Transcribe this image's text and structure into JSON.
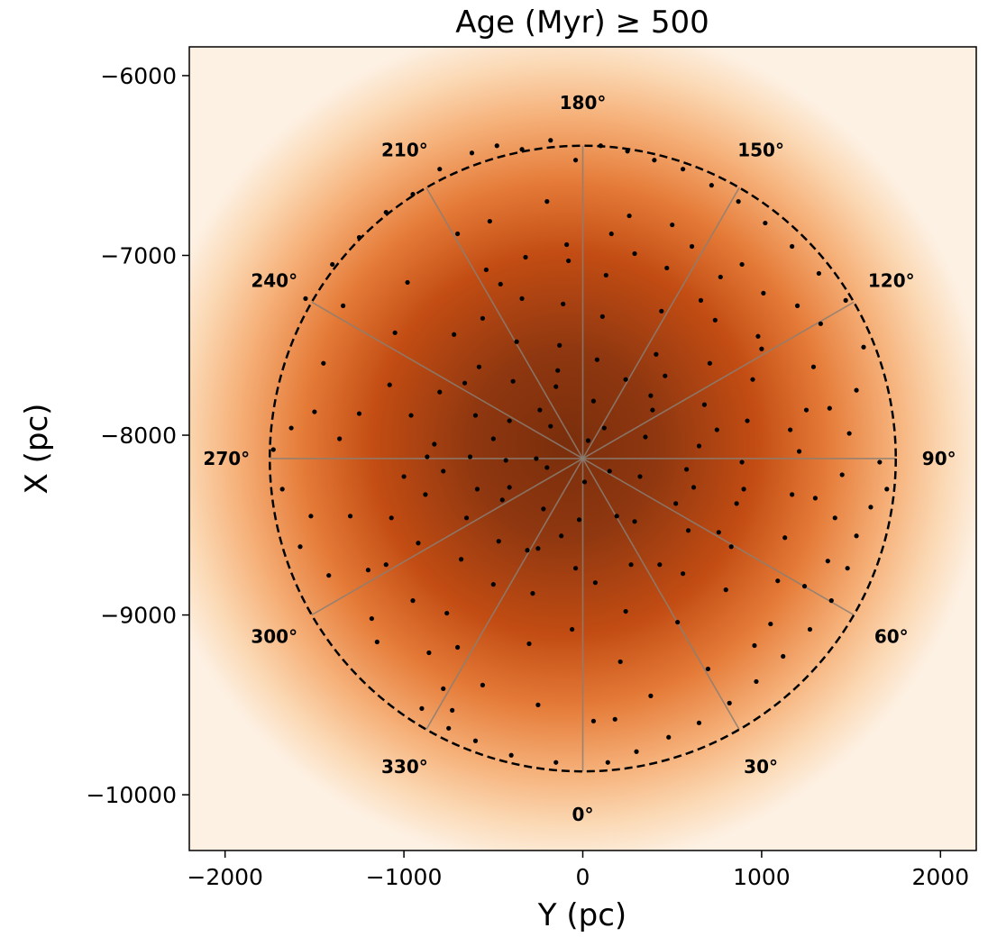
{
  "chart_data": {
    "type": "scatter",
    "title": "Age (Myr) ≥ 500",
    "xlabel": "Y (pc)",
    "ylabel": "X (pc)",
    "xlim": [
      -2200,
      2200
    ],
    "ylim": [
      -5840,
      -10310
    ],
    "y_axis_inverted": true,
    "x_ticks": [
      -2000,
      -1000,
      0,
      1000,
      2000
    ],
    "x_tick_labels": [
      "−2000",
      "−1000",
      "0",
      "1000",
      "2000"
    ],
    "y_ticks": [
      -10000,
      -9000,
      -8000,
      -7000,
      -6000
    ],
    "y_tick_labels": [
      "−10000",
      "−9000",
      "−8000",
      "−7000",
      "−6000"
    ],
    "grid": false,
    "background_density": {
      "colormap": "Oranges",
      "center": [
        -100,
        -8050
      ],
      "peak_color": "#7a2e0b",
      "edge_color": "#fdf1e4"
    },
    "polar_overlay": {
      "center": [
        0,
        -8130
      ],
      "radius_pc": 1750,
      "circle_style": "dashed black",
      "spoke_angles_deg": [
        0,
        30,
        60,
        90,
        120,
        150,
        180,
        210,
        240,
        270,
        300,
        330
      ],
      "angle_labels": [
        "0°",
        "30°",
        "60°",
        "90°",
        "120°",
        "150°",
        "180°",
        "210°",
        "240°",
        "270°",
        "300°",
        "330°"
      ]
    },
    "points": [
      [
        -1730,
        -8080
      ],
      [
        -1680,
        -8300
      ],
      [
        -1520,
        -8450
      ],
      [
        -1500,
        -7870
      ],
      [
        -1450,
        -7600
      ],
      [
        -1420,
        -8780
      ],
      [
        -1360,
        -8020
      ],
      [
        -1300,
        -8450
      ],
      [
        -1250,
        -7880
      ],
      [
        -1200,
        -8750
      ],
      [
        -1150,
        -9150
      ],
      [
        -1100,
        -8720
      ],
      [
        -1080,
        -7720
      ],
      [
        -1050,
        -7430
      ],
      [
        -1000,
        -8230
      ],
      [
        -950,
        -8920
      ],
      [
        -920,
        -8600
      ],
      [
        -880,
        -8330
      ],
      [
        -830,
        -8050
      ],
      [
        -800,
        -7760
      ],
      [
        -780,
        -9410
      ],
      [
        -760,
        -8990
      ],
      [
        -730,
        -9530
      ],
      [
        -700,
        -9180
      ],
      [
        -680,
        -8690
      ],
      [
        -650,
        -8460
      ],
      [
        -630,
        -8120
      ],
      [
        -600,
        -7890
      ],
      [
        -580,
        -7620
      ],
      [
        -560,
        -7350
      ],
      [
        -540,
        -7080
      ],
      [
        -520,
        -6810
      ],
      [
        -500,
        -8830
      ],
      [
        -470,
        -8590
      ],
      [
        -450,
        -8360
      ],
      [
        -430,
        -8140
      ],
      [
        -410,
        -7920
      ],
      [
        -390,
        -7700
      ],
      [
        -370,
        -7480
      ],
      [
        -340,
        -7240
      ],
      [
        -320,
        -7010
      ],
      [
        -300,
        -9160
      ],
      [
        -280,
        -8880
      ],
      [
        -250,
        -8630
      ],
      [
        -220,
        -8410
      ],
      [
        -200,
        -8180
      ],
      [
        -180,
        -7950
      ],
      [
        -150,
        -7730
      ],
      [
        -130,
        -7500
      ],
      [
        -110,
        -7270
      ],
      [
        -80,
        -7030
      ],
      [
        -60,
        -9080
      ],
      [
        -40,
        -8740
      ],
      [
        -20,
        -8470
      ],
      [
        10,
        -8260
      ],
      [
        30,
        -8030
      ],
      [
        60,
        -7810
      ],
      [
        80,
        -7580
      ],
      [
        110,
        -7340
      ],
      [
        130,
        -7110
      ],
      [
        160,
        -6880
      ],
      [
        180,
        -9580
      ],
      [
        210,
        -9260
      ],
      [
        240,
        -8980
      ],
      [
        270,
        -8720
      ],
      [
        290,
        -8480
      ],
      [
        320,
        -8230
      ],
      [
        350,
        -8010
      ],
      [
        380,
        -7780
      ],
      [
        410,
        -7550
      ],
      [
        440,
        -7310
      ],
      [
        470,
        -7070
      ],
      [
        500,
        -6830
      ],
      [
        530,
        -9040
      ],
      [
        560,
        -8770
      ],
      [
        590,
        -8530
      ],
      [
        620,
        -8290
      ],
      [
        650,
        -8060
      ],
      [
        680,
        -7830
      ],
      [
        710,
        -7600
      ],
      [
        740,
        -7360
      ],
      [
        770,
        -7120
      ],
      [
        800,
        -8860
      ],
      [
        830,
        -8620
      ],
      [
        860,
        -8380
      ],
      [
        890,
        -8150
      ],
      [
        920,
        -7920
      ],
      [
        950,
        -7690
      ],
      [
        980,
        -7450
      ],
      [
        1010,
        -7210
      ],
      [
        1050,
        -9050
      ],
      [
        1090,
        -8810
      ],
      [
        1130,
        -8570
      ],
      [
        1170,
        -8330
      ],
      [
        1210,
        -8090
      ],
      [
        1250,
        -7860
      ],
      [
        1290,
        -7620
      ],
      [
        1330,
        -7380
      ],
      [
        1370,
        -8700
      ],
      [
        1410,
        -8460
      ],
      [
        1450,
        -8220
      ],
      [
        1490,
        -7990
      ],
      [
        1530,
        -7750
      ],
      [
        1570,
        -7510
      ],
      [
        1610,
        -8400
      ],
      [
        1660,
        -8150
      ],
      [
        1700,
        -8300
      ],
      [
        -1550,
        -7240
      ],
      [
        -1400,
        -7050
      ],
      [
        -1250,
        -6900
      ],
      [
        -1100,
        -6760
      ],
      [
        -950,
        -6660
      ],
      [
        -800,
        -6520
      ],
      [
        -620,
        -6430
      ],
      [
        -480,
        -6390
      ],
      [
        -340,
        -6410
      ],
      [
        -180,
        -6360
      ],
      [
        -40,
        -6470
      ],
      [
        100,
        -6390
      ],
      [
        250,
        -6420
      ],
      [
        400,
        -6470
      ],
      [
        560,
        -6520
      ],
      [
        720,
        -6610
      ],
      [
        870,
        -6700
      ],
      [
        1020,
        -6820
      ],
      [
        1170,
        -6950
      ],
      [
        1320,
        -7100
      ],
      [
        1470,
        -7250
      ],
      [
        -900,
        -9520
      ],
      [
        -750,
        -9630
      ],
      [
        -600,
        -9700
      ],
      [
        -400,
        -9780
      ],
      [
        -150,
        -9820
      ],
      [
        140,
        -9820
      ],
      [
        300,
        -9760
      ],
      [
        480,
        -9680
      ],
      [
        650,
        -9600
      ],
      [
        820,
        -9490
      ],
      [
        970,
        -9370
      ],
      [
        1120,
        -9230
      ],
      [
        1270,
        -9080
      ],
      [
        1390,
        -8920
      ],
      [
        1480,
        -8740
      ],
      [
        -1580,
        -8620
      ],
      [
        -1630,
        -7960
      ],
      [
        -1340,
        -7280
      ],
      [
        -1180,
        -9020
      ],
      [
        -980,
        -7150
      ],
      [
        -700,
        -6880
      ],
      [
        -200,
        -6700
      ],
      [
        260,
        -6780
      ],
      [
        610,
        -6950
      ],
      [
        890,
        -7050
      ],
      [
        1200,
        -7280
      ],
      [
        1380,
        -7850
      ],
      [
        1530,
        -8560
      ],
      [
        -860,
        -9210
      ],
      [
        -560,
        -9390
      ],
      [
        -250,
        -9500
      ],
      [
        60,
        -9590
      ],
      [
        380,
        -9450
      ],
      [
        700,
        -9300
      ],
      [
        960,
        -9170
      ],
      [
        1240,
        -8840
      ],
      [
        -1070,
        -8460
      ],
      [
        -870,
        -8120
      ],
      [
        -720,
        -7440
      ],
      [
        -460,
        -7160
      ],
      [
        -90,
        -6940
      ],
      [
        290,
        -6990
      ],
      [
        660,
        -7250
      ],
      [
        1000,
        -7520
      ],
      [
        1160,
        -7970
      ],
      [
        1300,
        -8350
      ],
      [
        -310,
        -8640
      ],
      [
        70,
        -8820
      ],
      [
        430,
        -8720
      ],
      [
        760,
        -8540
      ],
      [
        -500,
        -8020
      ],
      [
        -240,
        -7860
      ],
      [
        120,
        -7960
      ],
      [
        390,
        -7860
      ],
      [
        -120,
        -8560
      ],
      [
        190,
        -8450
      ],
      [
        520,
        -8380
      ],
      [
        -410,
        -8290
      ],
      [
        580,
        -8190
      ],
      [
        -590,
        -8300
      ],
      [
        750,
        -7970
      ],
      [
        -780,
        -8200
      ],
      [
        -260,
        -8130
      ],
      [
        150,
        -8200
      ],
      [
        -140,
        -7640
      ],
      [
        240,
        -7690
      ],
      [
        -660,
        -7710
      ],
      [
        460,
        -7670
      ],
      [
        -960,
        -7890
      ],
      [
        900,
        -8300
      ]
    ]
  }
}
